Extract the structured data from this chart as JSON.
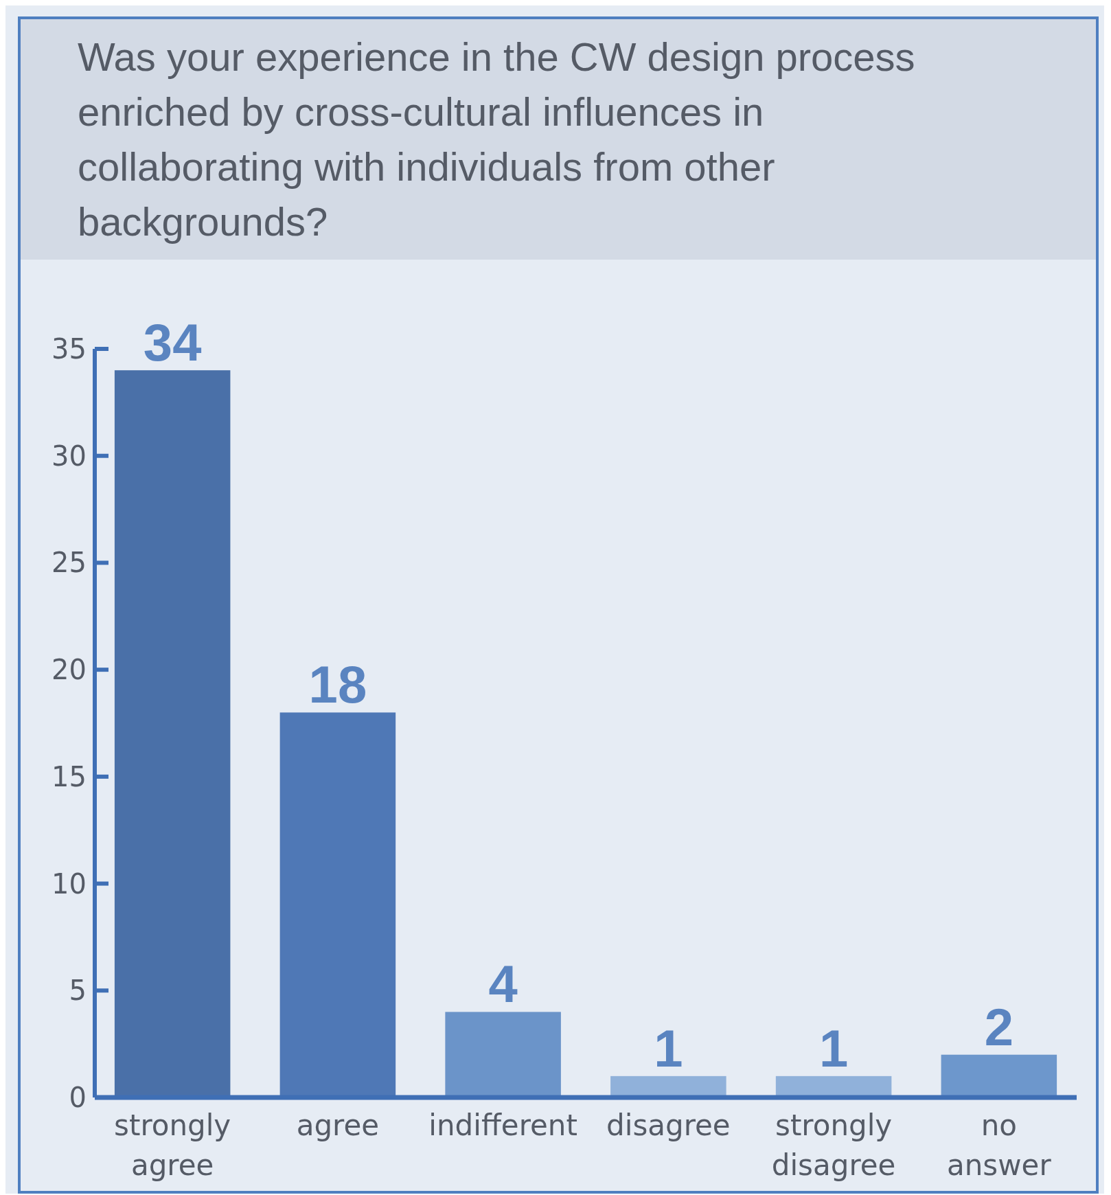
{
  "chart_data": {
    "type": "bar",
    "title": "Was your experience in the CW design process enriched by cross-cultural influences in collaborating with individuals from other backgrounds?",
    "categories": [
      "strongly agree",
      "agree",
      "indifferent",
      "disagree",
      "strongly disagree",
      "no answer"
    ],
    "values": [
      34,
      18,
      4,
      1,
      1,
      2
    ],
    "colors": [
      "#4a70a8",
      "#4f78b6",
      "#6b94c9",
      "#90b1da",
      "#90b1da",
      "#6d97cc"
    ],
    "ylim": [
      0,
      35
    ],
    "yticks": [
      0,
      5,
      10,
      15,
      20,
      25,
      30,
      35
    ],
    "grid": false,
    "data_labels": true
  }
}
